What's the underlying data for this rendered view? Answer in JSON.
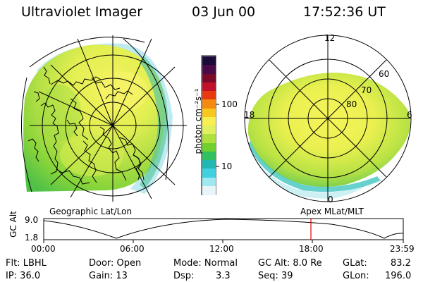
{
  "header": {
    "title": "Ultraviolet Imager",
    "date": "03 Jun 00",
    "time": "17:52:36 UT"
  },
  "colorbar": {
    "label": "photon cm⁻²s⁻¹",
    "ticks": [
      "100",
      "10"
    ],
    "colors_top_to_bottom": [
      "#1a0a3a",
      "#4a0a4a",
      "#7a0a2a",
      "#c0102a",
      "#e83a10",
      "#f58a10",
      "#f8c820",
      "#f8f050",
      "#e0f060",
      "#b0e040",
      "#70d030",
      "#30c060",
      "#20b8b0",
      "#40d0e0",
      "#a0e8f0",
      "#e8f4f8"
    ]
  },
  "left_panel": {
    "caption": "Geographic Lat/Lon"
  },
  "right_panel": {
    "caption": "Apex MLat/MLT",
    "mlt_labels": {
      "top": "12",
      "left": "18",
      "right": "6",
      "bottom": "0"
    },
    "lat_labels": [
      "60",
      "70",
      "80"
    ]
  },
  "timeline": {
    "ylabel": "GC Alt",
    "ymax": "9.0",
    "ymin": "1.8",
    "ticks": [
      "00:00",
      "06:00",
      "12:00",
      "18:00",
      "23:59"
    ],
    "current_time_marker": "17:52",
    "marker_color": "#e00000"
  },
  "info": {
    "filter_label": "Flt: LBHL",
    "ip_label": "IP: 36.0",
    "door_label": "Door: Open",
    "gain_label": "Gain: 13",
    "mode_label": "Mode: Normal",
    "dsp_label": "Dsp:",
    "dsp_value": "3.3",
    "gcalt_label": "GC Alt: 8.0 Re",
    "seq_label": "Seq: 39",
    "glat_label": "GLat:",
    "glat_value": "83.2",
    "glon_label": "GLon:",
    "glon_value": "196.0"
  }
}
